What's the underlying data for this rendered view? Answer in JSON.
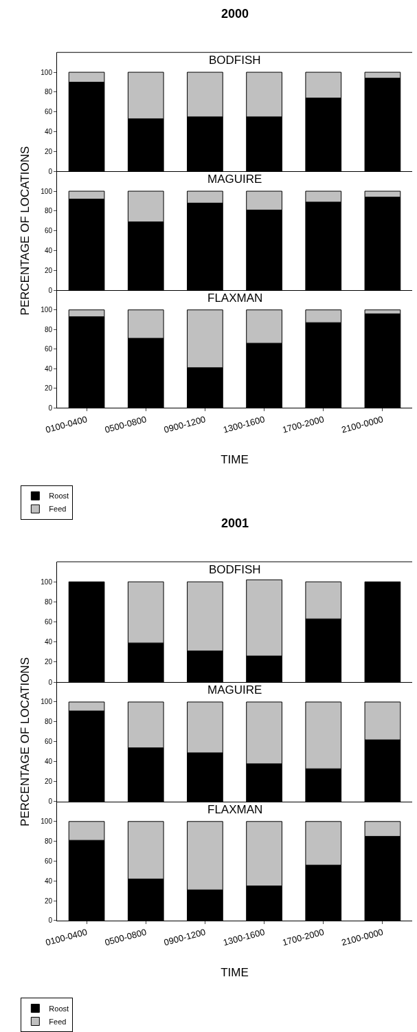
{
  "chart_data": [
    {
      "type": "bar",
      "stacked": true,
      "title": "BODFISH",
      "annotations": [
        "2000"
      ],
      "categories": [
        null,
        null,
        null,
        null,
        null,
        null
      ],
      "series": [
        {
          "color": "#000000",
          "values": [
            90,
            53,
            55,
            55,
            74,
            94
          ]
        },
        {
          "color": "#c0c0c0",
          "values": [
            10,
            47,
            45,
            45,
            26,
            6
          ]
        }
      ],
      "ylim": [
        0,
        120
      ],
      "yticks": [
        0,
        20,
        40,
        60,
        80,
        100
      ],
      "tick_labels": "y"
    },
    {
      "type": "bar",
      "stacked": true,
      "title": "MAGUIRE",
      "ylabel": "PERCENTAGE OF LOCATIONS",
      "categories": [
        null,
        null,
        null,
        null,
        null,
        null
      ],
      "series": [
        {
          "color": "#000000",
          "values": [
            92,
            69,
            88,
            81,
            89,
            94
          ]
        },
        {
          "color": "#c0c0c0",
          "values": [
            8,
            31,
            12,
            19,
            11,
            6
          ]
        }
      ],
      "ylim": [
        0,
        120
      ],
      "yticks": [
        0,
        20,
        40,
        60,
        80,
        100
      ],
      "tick_labels": "y"
    },
    {
      "type": "bar",
      "stacked": true,
      "title": "FLAXMAN",
      "xlabel": "TIME",
      "legend": "bottom left",
      "categories": [
        "0100-0400",
        "0500-0800",
        "0900-1200",
        "1300-1600",
        "1700-2000",
        "2100-0000"
      ],
      "series": [
        {
          "name": "Roost",
          "color": "#000000",
          "values": [
            93,
            71,
            41,
            66,
            87,
            96
          ]
        },
        {
          "name": "Feed",
          "color": "#c0c0c0",
          "values": [
            7,
            29,
            59,
            34,
            13,
            4
          ]
        }
      ],
      "ylim": [
        0,
        120
      ],
      "yticks": [
        0,
        20,
        40,
        60,
        80,
        100
      ]
    },
    {
      "type": "bar",
      "stacked": true,
      "title": "BODFISH",
      "annotations": [
        "2001"
      ],
      "categories": [
        null,
        null,
        null,
        null,
        null,
        null
      ],
      "series": [
        {
          "color": "#000000",
          "values": [
            100,
            39,
            31,
            26,
            63,
            100
          ]
        },
        {
          "color": "#c0c0c0",
          "values": [
            null,
            61,
            69,
            76,
            37,
            null
          ]
        }
      ],
      "ylim": [
        0,
        120
      ],
      "yticks": [
        0,
        20,
        40,
        60,
        80,
        100
      ],
      "tick_labels": "y"
    },
    {
      "type": "bar",
      "stacked": true,
      "title": "MAGUIRE",
      "ylabel": "PERCENTAGE OF LOCATIONS",
      "categories": [
        null,
        null,
        null,
        null,
        null,
        null
      ],
      "series": [
        {
          "color": "#000000",
          "values": [
            91,
            54,
            49,
            38,
            33,
            62
          ]
        },
        {
          "color": "#c0c0c0",
          "values": [
            9,
            46,
            51,
            62,
            67,
            38
          ]
        }
      ],
      "ylim": [
        0,
        120
      ],
      "yticks": [
        0,
        20,
        40,
        60,
        80,
        100
      ],
      "tick_labels": "y"
    },
    {
      "type": "bar",
      "stacked": true,
      "title": "FLAXMAN",
      "xlabel": "TIME",
      "legend": "bottom left",
      "categories": [
        "0100-0400",
        "0500-0800",
        "0900-1200",
        "1300-1600",
        "1700-2000",
        "2100-0000"
      ],
      "series": [
        {
          "name": "Roost",
          "color": "#000000",
          "values": [
            81,
            42,
            31,
            35,
            56,
            85
          ]
        },
        {
          "name": "Feed",
          "color": "#c0c0c0",
          "values": [
            19,
            58,
            69,
            65,
            44,
            15
          ]
        }
      ],
      "ylim": [
        0,
        120
      ],
      "yticks": [
        0,
        20,
        40,
        60,
        80,
        100
      ]
    }
  ]
}
